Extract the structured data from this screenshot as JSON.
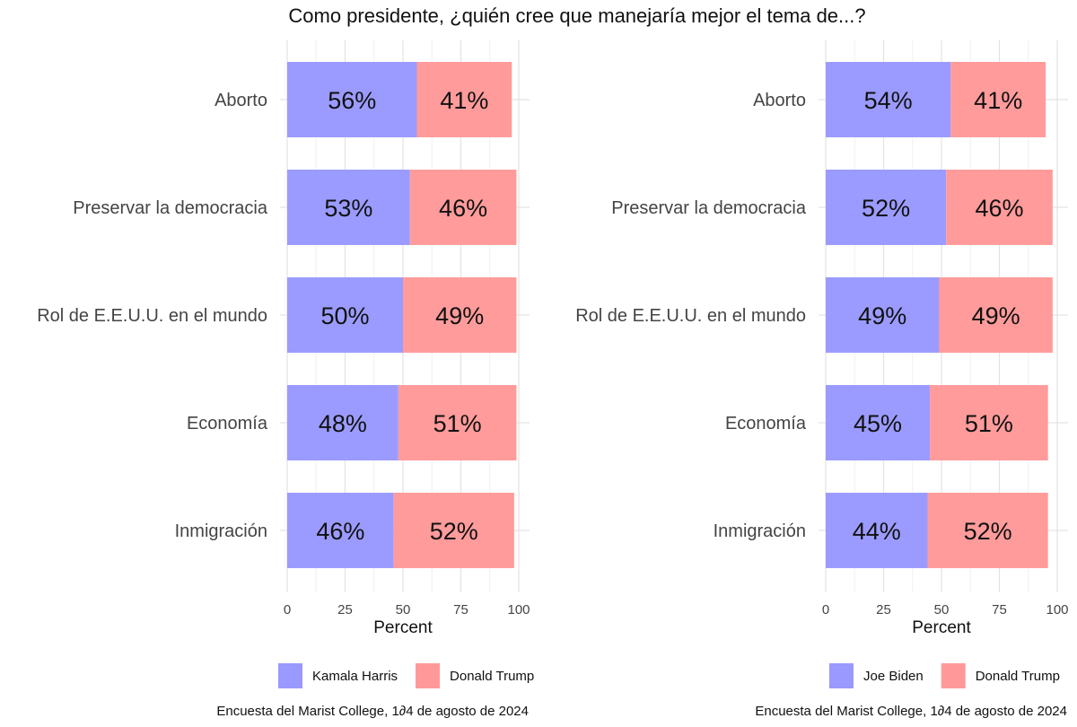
{
  "title": "Como presidente, ¿quién cree que manejaría mejor el tema de...?",
  "chart_data": [
    {
      "type": "bar",
      "orientation": "horizontal",
      "stacked": true,
      "categories": [
        "Aborto",
        "Preservar la democracia",
        "Rol de E.E.U.U. en el mundo",
        "Economía",
        "Inmigración"
      ],
      "series": [
        {
          "name": "Kamala Harris",
          "values": [
            56,
            53,
            50,
            48,
            46
          ],
          "color": "#9999ff"
        },
        {
          "name": "Donald Trump",
          "values": [
            41,
            46,
            49,
            51,
            52
          ],
          "color": "#ff9999"
        }
      ],
      "xlabel": "Percent",
      "xlim": [
        0,
        100
      ],
      "xticks": [
        0,
        25,
        50,
        75,
        100
      ],
      "grid": true,
      "legend": "bottom",
      "caption": "Encuesta del Marist College, 1∂4 de agosto de 2024"
    },
    {
      "type": "bar",
      "orientation": "horizontal",
      "stacked": true,
      "categories": [
        "Aborto",
        "Preservar la democracia",
        "Rol de E.E.U.U. en el mundo",
        "Economía",
        "Inmigración"
      ],
      "series": [
        {
          "name": "Joe Biden",
          "values": [
            54,
            52,
            49,
            45,
            44
          ],
          "color": "#9999ff"
        },
        {
          "name": "Donald Trump",
          "values": [
            41,
            46,
            49,
            51,
            52
          ],
          "color": "#ff9999"
        }
      ],
      "xlabel": "Percent",
      "xlim": [
        0,
        100
      ],
      "xticks": [
        0,
        25,
        50,
        75,
        100
      ],
      "grid": true,
      "legend": "bottom",
      "caption": "Encuesta del Marist College, 1∂4 de agosto de 2024"
    }
  ]
}
